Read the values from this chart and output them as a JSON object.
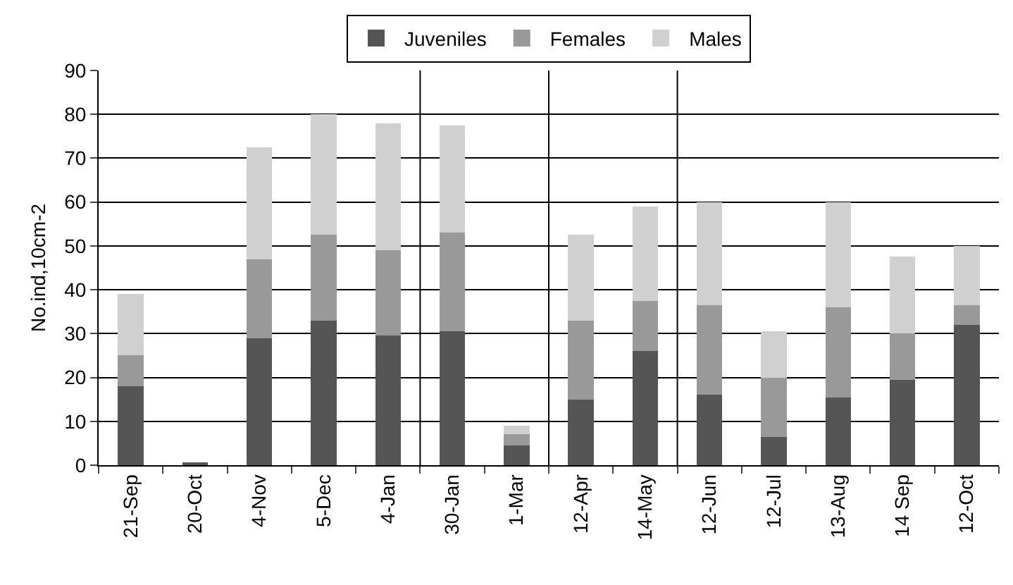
{
  "chart_data": {
    "type": "bar",
    "stacked": true,
    "ylabel": "No.ind,10cm-2",
    "categories": [
      "21-Sep",
      "20-Oct",
      "4-Nov",
      "5-Dec",
      "4-Jan",
      "30-Jan",
      "1-Mar",
      "12-Apr",
      "14-May",
      "12-Jun",
      "12-Jul",
      "13-Aug",
      "14 Sep",
      "12-Oct"
    ],
    "series": [
      {
        "name": "Juveniles",
        "color": "#555555",
        "values": [
          18,
          0.5,
          29,
          33,
          29.5,
          30.5,
          4.5,
          15,
          26,
          16,
          6.5,
          15.5,
          19.5,
          32
        ]
      },
      {
        "name": "Females",
        "color": "#999999",
        "values": [
          7,
          0,
          18,
          19.5,
          19.5,
          22.5,
          2.5,
          18,
          11.5,
          20.5,
          13.5,
          20.5,
          10.5,
          4.5
        ]
      },
      {
        "name": "Males",
        "color": "#d0d0d0",
        "values": [
          14,
          0,
          25.5,
          27.5,
          29,
          24.5,
          2,
          19.5,
          21.5,
          23.5,
          10.5,
          24,
          17.5,
          13.5
        ]
      }
    ],
    "ylim": [
      0,
      90
    ],
    "yticks": [
      0,
      10,
      20,
      30,
      40,
      50,
      60,
      70,
      80,
      90
    ],
    "grid": "y",
    "legend": "top"
  }
}
